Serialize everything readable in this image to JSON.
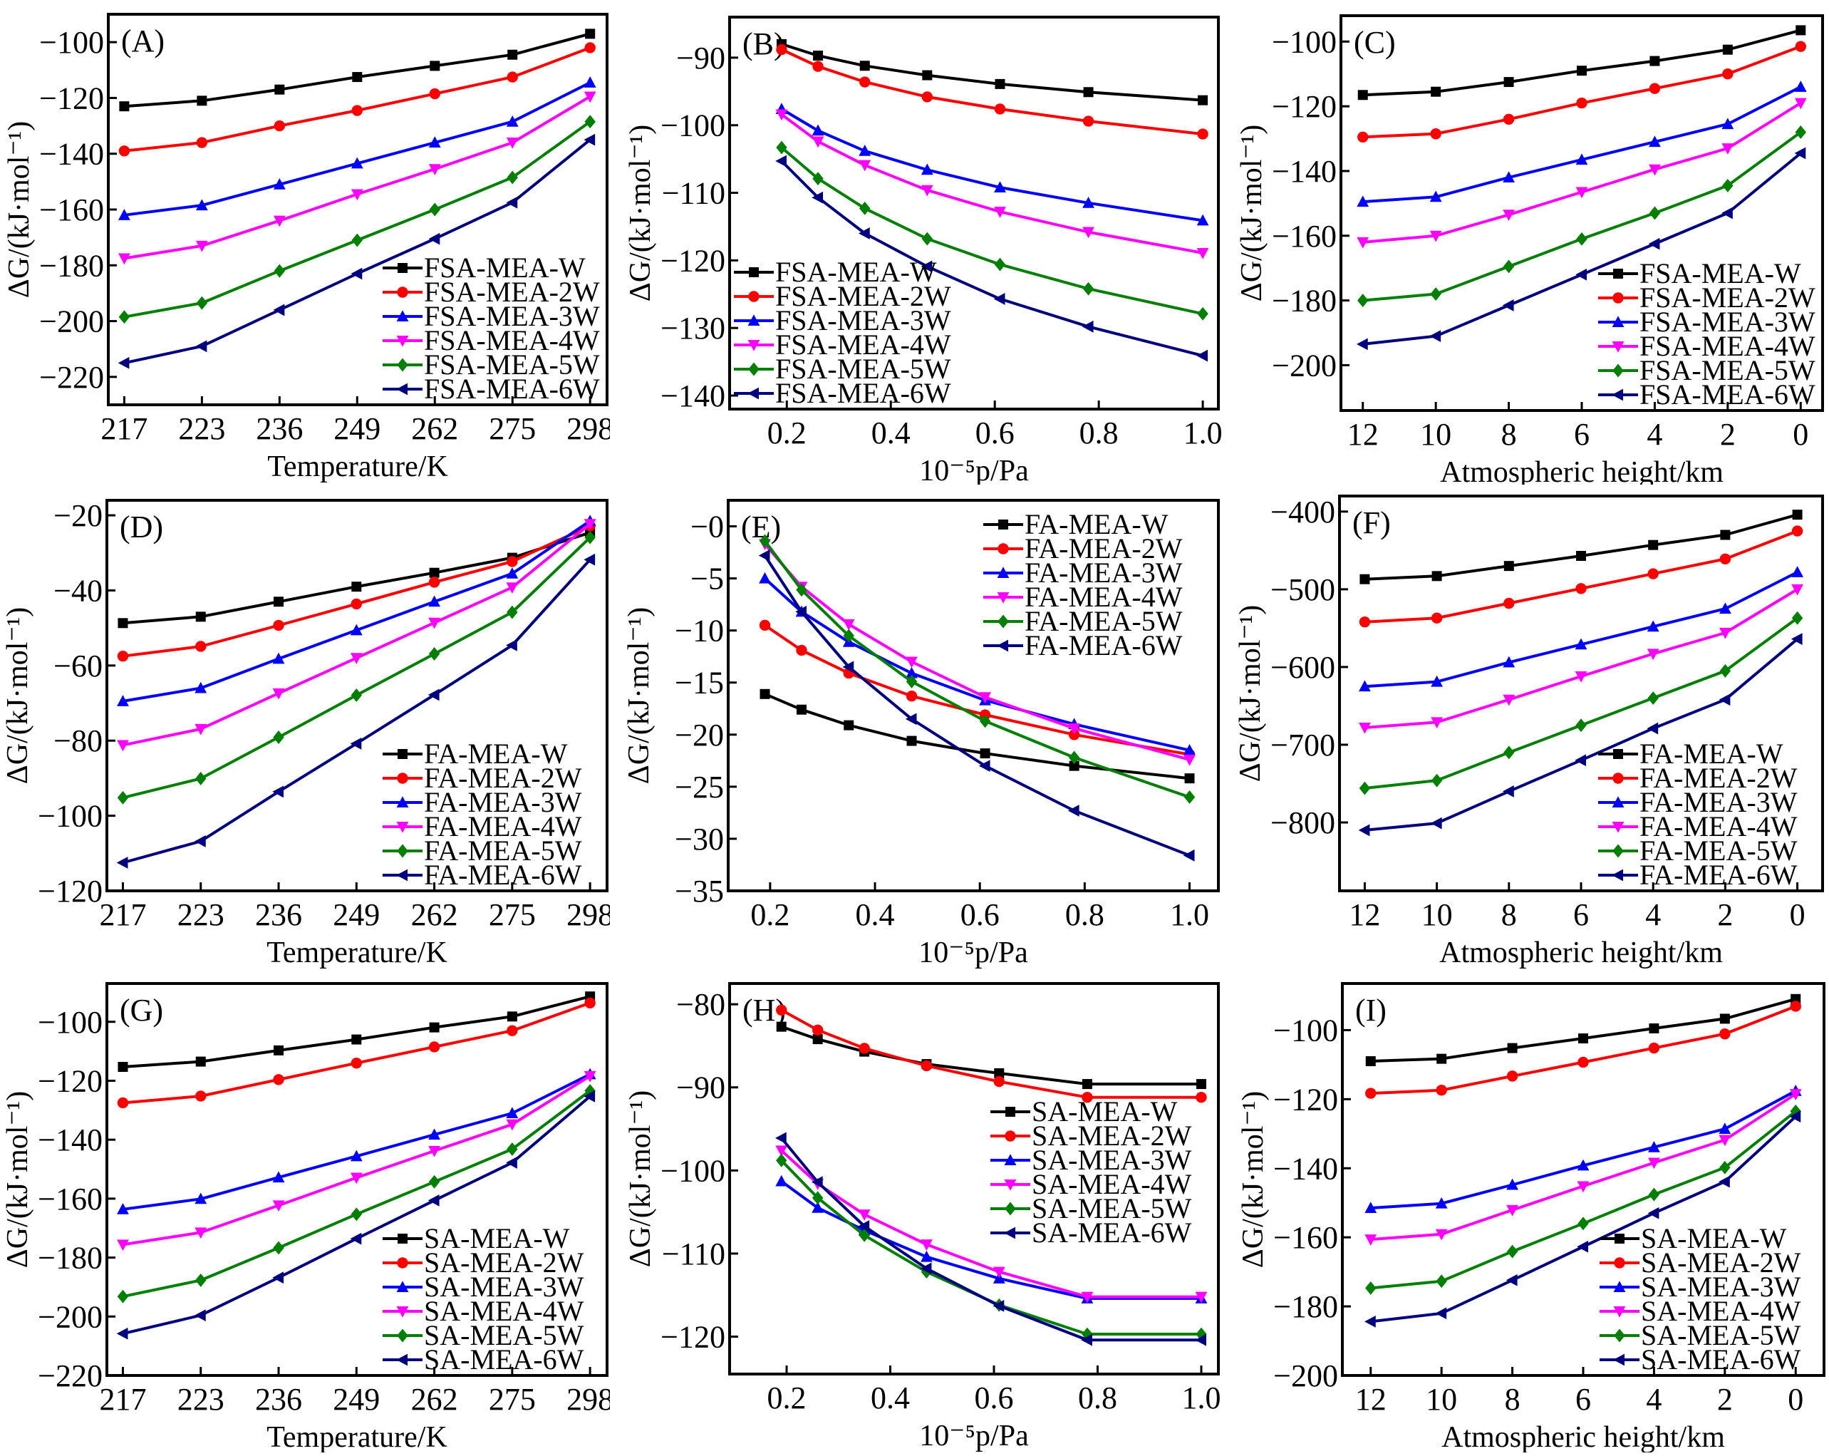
{
  "figure": {
    "series_style": {
      "colors": [
        "#000000",
        "#ff0000",
        "#0000ff",
        "#ff00ff",
        "#008000",
        "#000080"
      ],
      "markers": [
        "square",
        "circle",
        "triangle-up",
        "triangle-down",
        "diamond",
        "triangle-left"
      ]
    }
  },
  "chart_data": [
    {
      "panel": "(A)",
      "type": "line",
      "xlabel": "Temperature/K",
      "ylabel": "ΔG/(kJ·mol⁻¹)",
      "x_kind": "category",
      "categories": [
        "217",
        "223",
        "236",
        "249",
        "262",
        "275",
        "298"
      ],
      "ylim": [
        -230,
        -90
      ],
      "yticks": [
        -100,
        -120,
        -140,
        -160,
        -180,
        -200,
        -220
      ],
      "legend": "bottom-right",
      "series": [
        {
          "name": "FSA-MEA-W",
          "values": [
            -123,
            -121,
            -117,
            -112.5,
            -108.5,
            -104.5,
            -97
          ]
        },
        {
          "name": "FSA-MEA-2W",
          "values": [
            -139,
            -136,
            -130,
            -124.5,
            -118.5,
            -112.5,
            -102
          ]
        },
        {
          "name": "FSA-MEA-3W",
          "values": [
            -162,
            -158.5,
            -151,
            -143.5,
            -136,
            -128.5,
            -114.5
          ]
        },
        {
          "name": "FSA-MEA-4W",
          "values": [
            -177.5,
            -173,
            -164,
            -154.5,
            -145.5,
            -136,
            -119.5
          ]
        },
        {
          "name": "FSA-MEA-5W",
          "values": [
            -198.5,
            -193.5,
            -182,
            -171,
            -160,
            -148.5,
            -128.5
          ]
        },
        {
          "name": "FSA-MEA-6W",
          "values": [
            -215,
            -209,
            -196,
            -183,
            -170.5,
            -157.5,
            -135
          ]
        }
      ]
    },
    {
      "panel": "(B)",
      "type": "line",
      "xlabel": "10⁻⁵p/Pa",
      "ylabel": "ΔG/(kJ·mol⁻¹)",
      "x_kind": "numeric",
      "x": [
        0.19,
        0.26,
        0.35,
        0.47,
        0.61,
        0.78,
        1.0
      ],
      "xlim": [
        0.09,
        1.03
      ],
      "xticks": [
        "0.2",
        "0.4",
        "0.6",
        "0.8",
        "1.0"
      ],
      "ylim": [
        -142,
        -84
      ],
      "yticks": [
        -90,
        -100,
        -110,
        -120,
        -130,
        -140
      ],
      "legend": "bottom-left",
      "series": [
        {
          "name": "FSA-MEA-W",
          "values": [
            -88,
            -89.7,
            -91.2,
            -92.6,
            -93.9,
            -95.1,
            -96.3
          ]
        },
        {
          "name": "FSA-MEA-2W",
          "values": [
            -88.8,
            -91.3,
            -93.6,
            -95.8,
            -97.6,
            -99.4,
            -101.3
          ]
        },
        {
          "name": "FSA-MEA-3W",
          "values": [
            -97.6,
            -100.8,
            -103.8,
            -106.6,
            -109.2,
            -111.5,
            -114.1
          ]
        },
        {
          "name": "FSA-MEA-4W",
          "values": [
            -98.4,
            -102.4,
            -105.9,
            -109.6,
            -112.8,
            -115.8,
            -118.9
          ]
        },
        {
          "name": "FSA-MEA-5W",
          "values": [
            -103.3,
            -107.9,
            -112.3,
            -116.8,
            -120.6,
            -124.2,
            -127.9
          ]
        },
        {
          "name": "FSA-MEA-6W",
          "values": [
            -105.3,
            -110.7,
            -116,
            -120.9,
            -125.7,
            -129.8,
            -134.1
          ]
        }
      ]
    },
    {
      "panel": "(C)",
      "type": "line",
      "xlabel": "Atmospheric height/km",
      "ylabel": "ΔG/(kJ·mol⁻¹)",
      "x_kind": "numeric",
      "x": [
        12,
        10,
        8,
        6,
        4,
        2,
        0
      ],
      "xlim": [
        12.6,
        -0.6
      ],
      "xticks": [
        "12",
        "10",
        "8",
        "6",
        "4",
        "2",
        "0"
      ],
      "ylim": [
        -214,
        -92
      ],
      "yticks": [
        -100,
        -120,
        -140,
        -160,
        -180,
        -200
      ],
      "legend": "bottom-right",
      "series": [
        {
          "name": "FSA-MEA-W",
          "values": [
            -116.5,
            -115.5,
            -112.5,
            -109,
            -106,
            -102.5,
            -96.5
          ]
        },
        {
          "name": "FSA-MEA-2W",
          "values": [
            -129.5,
            -128.5,
            -124,
            -119,
            -114.5,
            -110,
            -101.5
          ]
        },
        {
          "name": "FSA-MEA-3W",
          "values": [
            -149.5,
            -148,
            -142,
            -136.5,
            -131,
            -125.5,
            -114
          ]
        },
        {
          "name": "FSA-MEA-4W",
          "values": [
            -162,
            -160,
            -153.5,
            -146.5,
            -139.5,
            -133,
            -119
          ]
        },
        {
          "name": "FSA-MEA-5W",
          "values": [
            -180,
            -178,
            -169.5,
            -161,
            -153,
            -144.5,
            -128
          ]
        },
        {
          "name": "FSA-MEA-6W",
          "values": [
            -193.5,
            -191,
            -181.5,
            -172,
            -162.5,
            -153,
            -134.5
          ]
        }
      ]
    },
    {
      "panel": "(D)",
      "type": "line",
      "xlabel": "Temperature/K",
      "ylabel": "ΔG/(kJ·mol⁻¹)",
      "x_kind": "category",
      "categories": [
        "217",
        "223",
        "236",
        "249",
        "262",
        "275",
        "298"
      ],
      "ylim": [
        -120,
        -16
      ],
      "yticks": [
        -20,
        -40,
        -60,
        -80,
        -100,
        -120
      ],
      "legend": "bottom-right",
      "series": [
        {
          "name": "FA-MEA-W",
          "values": [
            -48.7,
            -47,
            -43,
            -39,
            -35.3,
            -31.3,
            -24.6
          ]
        },
        {
          "name": "FA-MEA-2W",
          "values": [
            -57.5,
            -54.9,
            -49.3,
            -43.6,
            -37.8,
            -32.3,
            -22.8
          ]
        },
        {
          "name": "FA-MEA-3W",
          "values": [
            -69.5,
            -66,
            -58.2,
            -50.6,
            -43,
            -35.5,
            -21.5
          ]
        },
        {
          "name": "FA-MEA-4W",
          "values": [
            -81.2,
            -76.9,
            -67.4,
            -58,
            -48.6,
            -39.2,
            -22.3
          ]
        },
        {
          "name": "FA-MEA-5W",
          "values": [
            -95.2,
            -90.1,
            -79.1,
            -67.9,
            -56.9,
            -45.8,
            -25.9
          ]
        },
        {
          "name": "FA-MEA-6W",
          "values": [
            -112.5,
            -106.8,
            -93.6,
            -80.8,
            -67.8,
            -54.6,
            -31.8
          ]
        }
      ]
    },
    {
      "panel": "(E)",
      "type": "line",
      "xlabel": "10⁻⁵p/Pa",
      "ylabel": "ΔG/(kJ·mol⁻¹)",
      "x_kind": "numeric",
      "x": [
        0.19,
        0.26,
        0.35,
        0.47,
        0.61,
        0.78,
        1.0
      ],
      "xlim": [
        0.12,
        1.055
      ],
      "xticks": [
        "0.2",
        "0.4",
        "0.6",
        "0.8",
        "1.0"
      ],
      "ylim": [
        -35,
        2.5
      ],
      "yticks": [
        0,
        -5,
        -10,
        -15,
        -20,
        -25,
        -30,
        -35
      ],
      "ytick_labels": [
        "−0",
        "−5",
        "−10",
        "−15",
        "−20",
        "−25",
        "−30",
        "−35"
      ],
      "legend": "top-right",
      "series": [
        {
          "name": "FA-MEA-W",
          "values": [
            -16.1,
            -17.6,
            -19.1,
            -20.6,
            -21.8,
            -23,
            -24.2
          ]
        },
        {
          "name": "FA-MEA-2W",
          "values": [
            -9.5,
            -11.9,
            -14.1,
            -16.3,
            -18.1,
            -20,
            -21.9
          ]
        },
        {
          "name": "FA-MEA-3W",
          "values": [
            -5,
            -8.2,
            -11.1,
            -14.1,
            -16.7,
            -19,
            -21.5
          ]
        },
        {
          "name": "FA-MEA-4W",
          "values": [
            -1.7,
            -5.8,
            -9.4,
            -13,
            -16.4,
            -19.4,
            -22.4
          ]
        },
        {
          "name": "FA-MEA-5W",
          "values": [
            -1.4,
            -6.1,
            -10.5,
            -14.9,
            -18.7,
            -22.2,
            -26
          ]
        },
        {
          "name": "FA-MEA-6W",
          "values": [
            -2.8,
            -8.2,
            -13.5,
            -18.5,
            -23,
            -27.3,
            -31.6
          ]
        }
      ]
    },
    {
      "panel": "(F)",
      "type": "line",
      "xlabel": "Atmospheric height/km",
      "ylabel": "ΔG/(kJ·mol⁻¹)",
      "x_kind": "numeric",
      "x": [
        12,
        10,
        8,
        6,
        4,
        2,
        0
      ],
      "xlim": [
        12.7,
        -0.7
      ],
      "xticks": [
        "12",
        "10",
        "8",
        "6",
        "4",
        "2",
        "0"
      ],
      "ylim": [
        -888,
        -380
      ],
      "yticks": [
        -400,
        -500,
        -600,
        -700,
        -800
      ],
      "legend": "bottom-right",
      "series": [
        {
          "name": "FA-MEA-W",
          "values": [
            -487,
            -483,
            -470,
            -457,
            -443,
            -430,
            -404
          ]
        },
        {
          "name": "FA-MEA-2W",
          "values": [
            -542,
            -537,
            -518,
            -499,
            -480,
            -461,
            -425
          ]
        },
        {
          "name": "FA-MEA-3W",
          "values": [
            -625,
            -619,
            -594,
            -571,
            -548,
            -525,
            -478
          ]
        },
        {
          "name": "FA-MEA-4W",
          "values": [
            -678,
            -671,
            -642,
            -612,
            -583,
            -556,
            -500
          ]
        },
        {
          "name": "FA-MEA-5W",
          "values": [
            -756,
            -746,
            -710,
            -675,
            -640,
            -605,
            -537
          ]
        },
        {
          "name": "FA-MEA-6W",
          "values": [
            -810,
            -801,
            -760,
            -720,
            -679,
            -642,
            -564
          ]
        }
      ]
    },
    {
      "panel": "(G)",
      "type": "line",
      "xlabel": "Temperature/K",
      "ylabel": "ΔG/(kJ·mol⁻¹)",
      "x_kind": "category",
      "categories": [
        "217",
        "223",
        "236",
        "249",
        "262",
        "275",
        "298"
      ],
      "ylim": [
        -220,
        -87
      ],
      "yticks": [
        -100,
        -120,
        -140,
        -160,
        -180,
        -200,
        -220
      ],
      "legend": "bottom-right",
      "series": [
        {
          "name": "SA-MEA-W",
          "values": [
            -115.3,
            -113.5,
            -109.7,
            -106,
            -101.9,
            -98.2,
            -91.4
          ]
        },
        {
          "name": "SA-MEA-2W",
          "values": [
            -127.5,
            -125.2,
            -119.6,
            -114,
            -108.5,
            -103,
            -93.6
          ]
        },
        {
          "name": "SA-MEA-3W",
          "values": [
            -163.6,
            -160.1,
            -152.8,
            -145.6,
            -138.3,
            -131,
            -117.8
          ]
        },
        {
          "name": "SA-MEA-4W",
          "values": [
            -175.6,
            -171.5,
            -162.3,
            -152.9,
            -143.8,
            -134.8,
            -118.4
          ]
        },
        {
          "name": "SA-MEA-5W",
          "values": [
            -193.2,
            -187.7,
            -176.7,
            -165.3,
            -154.3,
            -143.2,
            -123.4
          ]
        },
        {
          "name": "SA-MEA-6W",
          "values": [
            -205.8,
            -199.6,
            -186.8,
            -173.6,
            -160.6,
            -147.8,
            -125.3
          ]
        }
      ]
    },
    {
      "panel": "(H)",
      "type": "line",
      "xlabel": "10⁻⁵p/Pa",
      "ylabel": "ΔG/(kJ·mol⁻¹)",
      "x_kind": "numeric",
      "x": [
        0.19,
        0.26,
        0.35,
        0.47,
        0.61,
        0.78,
        1.0
      ],
      "xlim": [
        0.09,
        1.033
      ],
      "xticks": [
        "0.2",
        "0.4",
        "0.6",
        "0.8",
        "1.0"
      ],
      "ylim": [
        -124.5,
        -77.5
      ],
      "yticks": [
        -80,
        -90,
        -100,
        -110,
        -120
      ],
      "legend": "middle-right",
      "series": [
        {
          "name": "SA-MEA-W",
          "values": [
            -82.7,
            -84.2,
            -85.7,
            -87.2,
            -88.3,
            -89.6,
            -89.6
          ]
        },
        {
          "name": "SA-MEA-2W",
          "values": [
            -80.7,
            -83.1,
            -85.3,
            -87.4,
            -89.3,
            -91.2,
            -91.2
          ]
        },
        {
          "name": "SA-MEA-3W",
          "values": [
            -101.3,
            -104.5,
            -107.2,
            -110.4,
            -113,
            -115.4,
            -115.4
          ]
        },
        {
          "name": "SA-MEA-4W",
          "values": [
            -97.6,
            -101.6,
            -105.3,
            -108.9,
            -112.2,
            -115.2,
            -115.2
          ]
        },
        {
          "name": "SA-MEA-5W",
          "values": [
            -98.8,
            -103.3,
            -107.8,
            -112.2,
            -116.2,
            -119.7,
            -119.7
          ]
        },
        {
          "name": "SA-MEA-6W",
          "values": [
            -96.1,
            -101.4,
            -106.7,
            -111.8,
            -116.3,
            -120.4,
            -120.4
          ]
        }
      ]
    },
    {
      "panel": "(I)",
      "type": "line",
      "xlabel": "Atmospheric height/km",
      "ylabel": "ΔG/(kJ·mol⁻¹)",
      "x_kind": "numeric",
      "x": [
        12,
        10,
        8,
        6,
        4,
        2,
        0
      ],
      "xlim": [
        12.8,
        -0.8
      ],
      "xticks": [
        "12",
        "10",
        "8",
        "6",
        "4",
        "2",
        "0"
      ],
      "ylim": [
        -200,
        -86.5
      ],
      "yticks": [
        -100,
        -120,
        -140,
        -160,
        -180,
        -200
      ],
      "legend": "bottom-right",
      "series": [
        {
          "name": "SA-MEA-W",
          "values": [
            -109,
            -108.3,
            -105.2,
            -102.4,
            -99.5,
            -96.7,
            -91
          ]
        },
        {
          "name": "SA-MEA-2W",
          "values": [
            -118.3,
            -117.4,
            -113.3,
            -109.3,
            -105.2,
            -101.1,
            -93.1
          ]
        },
        {
          "name": "SA-MEA-3W",
          "values": [
            -151.5,
            -150.2,
            -144.8,
            -139.2,
            -133.9,
            -128.6,
            -117.6
          ]
        },
        {
          "name": "SA-MEA-4W",
          "values": [
            -160.6,
            -159.1,
            -152.1,
            -145.2,
            -138.4,
            -131.8,
            -118.5
          ]
        },
        {
          "name": "SA-MEA-5W",
          "values": [
            -174.7,
            -172.7,
            -164.1,
            -156,
            -147.6,
            -139.8,
            -123.5
          ]
        },
        {
          "name": "SA-MEA-6W",
          "values": [
            -184.4,
            -182,
            -172.4,
            -162.7,
            -153,
            -143.9,
            -125
          ]
        }
      ]
    }
  ]
}
